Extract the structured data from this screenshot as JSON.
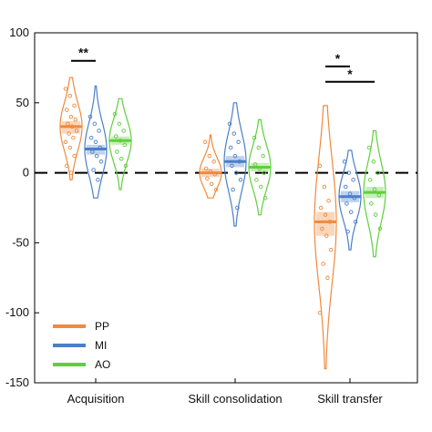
{
  "chart_data": {
    "type": "violin",
    "categories": [
      "Acquisition",
      "Skill consolidation",
      "Skill transfer"
    ],
    "ylim": [
      -150,
      100
    ],
    "yticks": [
      100,
      50,
      0,
      -50,
      -100,
      -150
    ],
    "zero_line": "dashed",
    "legend_position": "bottom-left",
    "series": [
      {
        "name": "PP",
        "color": "#f08a3c",
        "groups": [
          {
            "median": 33,
            "ci": [
              28,
              37
            ],
            "range": [
              -5,
              68
            ],
            "points": [
              60,
              55,
              48,
              45,
              40,
              38,
              35,
              33,
              30,
              28,
              25,
              22,
              18,
              12,
              5,
              0
            ]
          },
          {
            "median": 0,
            "ci": [
              -3,
              3
            ],
            "range": [
              -18,
              27
            ],
            "points": [
              22,
              12,
              8,
              3,
              1,
              -1,
              -4,
              -8,
              -12
            ]
          },
          {
            "median": -35,
            "ci": [
              -45,
              -28
            ],
            "range": [
              -140,
              48
            ],
            "points": [
              5,
              -10,
              -20,
              -25,
              -30,
              -35,
              -40,
              -45,
              -55,
              -65,
              -75,
              -100
            ]
          }
        ]
      },
      {
        "name": "MI",
        "color": "#4a7fc8",
        "groups": [
          {
            "median": 17,
            "ci": [
              13,
              20
            ],
            "range": [
              -18,
              62
            ],
            "points": [
              40,
              35,
              30,
              25,
              22,
              18,
              15,
              12,
              8,
              2,
              -5
            ]
          },
          {
            "median": 8,
            "ci": [
              4,
              12
            ],
            "range": [
              -38,
              50
            ],
            "points": [
              35,
              28,
              22,
              18,
              12,
              8,
              5,
              0,
              -5,
              -12,
              -25
            ]
          },
          {
            "median": -17,
            "ci": [
              -21,
              -13
            ],
            "range": [
              -55,
              16
            ],
            "points": [
              8,
              0,
              -5,
              -10,
              -15,
              -18,
              -22,
              -28,
              -35,
              -42
            ]
          }
        ]
      },
      {
        "name": "AO",
        "color": "#5fcf3c",
        "groups": [
          {
            "median": 23,
            "ci": [
              20,
              26
            ],
            "range": [
              -12,
              53
            ],
            "points": [
              42,
              35,
              30,
              26,
              23,
              20,
              15,
              10,
              5
            ]
          },
          {
            "median": 4,
            "ci": [
              1,
              7
            ],
            "range": [
              -30,
              38
            ],
            "points": [
              25,
              18,
              12,
              6,
              3,
              0,
              -5,
              -10,
              -18
            ]
          },
          {
            "median": -14,
            "ci": [
              -18,
              -10
            ],
            "range": [
              -60,
              30
            ],
            "points": [
              18,
              8,
              0,
              -5,
              -12,
              -16,
              -22,
              -30,
              -40
            ]
          }
        ]
      }
    ],
    "significance": [
      {
        "category": 0,
        "from": 0,
        "to": 1,
        "label": "**",
        "y": 80
      },
      {
        "category": 2,
        "from": 0,
        "to": 1,
        "label": "*",
        "y": 76
      },
      {
        "category": 2,
        "from": 0,
        "to": 2,
        "label": "*",
        "y": 65
      }
    ]
  }
}
